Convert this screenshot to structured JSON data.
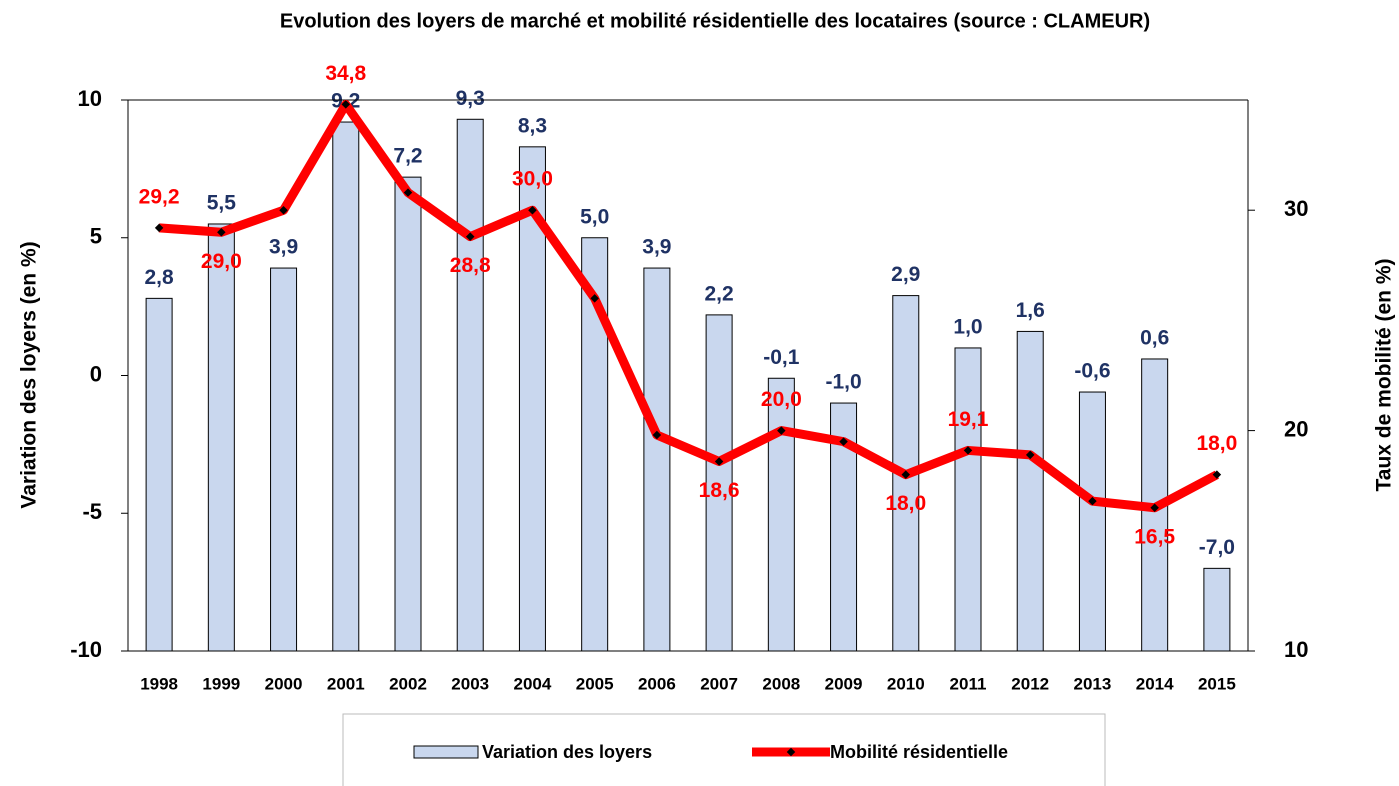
{
  "chart_data": {
    "type": "bar_line",
    "title": "Evolution des loyers de marché et mobilité résidentielle des locataires (source : CLAMEUR)",
    "y_label": "Variation des loyers (en %)",
    "y2_label": "Taux de mobilité (en %)",
    "categories": [
      "1998",
      "1999",
      "2000",
      "2001",
      "2002",
      "2003",
      "2004",
      "2005",
      "2006",
      "2007",
      "2008",
      "2009",
      "2010",
      "2011",
      "2012",
      "2013",
      "2014",
      "2015"
    ],
    "series": [
      {
        "name": "Variation des loyers",
        "type": "bar",
        "color": "#c9d7ee",
        "edge": "#000000",
        "label_color": "#1f3264",
        "values": [
          2.8,
          5.5,
          3.9,
          9.2,
          7.2,
          9.3,
          8.3,
          5.0,
          3.9,
          2.2,
          -0.1,
          -1.0,
          2.9,
          1.0,
          1.6,
          -0.6,
          0.6,
          -7.0
        ],
        "value_labels": [
          "2,8",
          "5,5",
          "3,9",
          "9,2",
          "7,2",
          "9,3",
          "8,3",
          "5,0",
          "3,9",
          "2,2",
          "-0,1",
          "-1,0",
          "2,9",
          "1,0",
          "1,6",
          "-0,6",
          "0,6",
          "-7,0"
        ]
      },
      {
        "name": "Mobilité résidentielle",
        "type": "line",
        "axis": "y2",
        "color": "#ff0000",
        "label_color": "#ff0000",
        "values": [
          29.2,
          29.0,
          30.0,
          34.8,
          30.8,
          28.8,
          30.0,
          26.0,
          19.8,
          18.6,
          20.0,
          19.5,
          18.0,
          19.1,
          18.9,
          16.8,
          16.5,
          18.0
        ],
        "value_labels": [
          "29,2",
          "29,0",
          null,
          "34,8",
          null,
          "28,8",
          "30,0",
          null,
          null,
          "18,6",
          "20,0",
          null,
          "18,0",
          "19,1",
          null,
          null,
          "16,5",
          "18,0"
        ]
      }
    ],
    "ylim": [
      -10,
      10
    ],
    "yticks": [
      -10,
      -5,
      0,
      5,
      10
    ],
    "y2lim": [
      10,
      35
    ],
    "y2ticks": [
      10,
      20,
      30
    ]
  }
}
